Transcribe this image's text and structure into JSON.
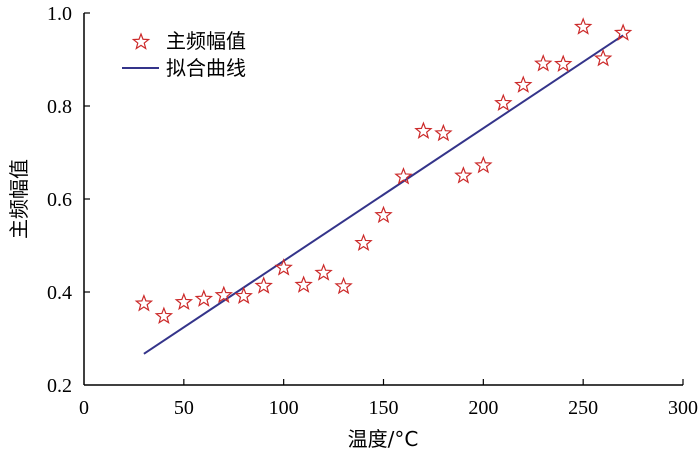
{
  "chart_data": {
    "type": "scatter",
    "xlabel": "温度/°C",
    "ylabel": "主频幅值",
    "xlim": [
      0,
      300
    ],
    "ylim": [
      0.2,
      1.0
    ],
    "xticks": [
      0,
      50,
      100,
      150,
      200,
      250,
      300
    ],
    "yticks": [
      0.2,
      0.4,
      0.6,
      0.8,
      1.0
    ],
    "xtick_labels": [
      "0",
      "50",
      "100",
      "150",
      "200",
      "250",
      "300"
    ],
    "ytick_labels": [
      "0.2",
      "0.4",
      "0.6",
      "0.8",
      "1.0"
    ],
    "legend_position": "top-left",
    "series": [
      {
        "name": "主频幅值",
        "type": "scatter",
        "marker": "star",
        "color": "#cc2a2a",
        "x": [
          30,
          40,
          50,
          60,
          70,
          80,
          90,
          100,
          110,
          120,
          130,
          140,
          150,
          160,
          170,
          180,
          190,
          200,
          210,
          220,
          230,
          240,
          250,
          260,
          270
        ],
        "y": [
          0.375,
          0.348,
          0.378,
          0.385,
          0.393,
          0.391,
          0.413,
          0.452,
          0.415,
          0.441,
          0.412,
          0.505,
          0.565,
          0.648,
          0.746,
          0.741,
          0.65,
          0.672,
          0.806,
          0.845,
          0.891,
          0.89,
          0.97,
          0.902,
          0.957
        ]
      },
      {
        "name": "拟合曲线",
        "type": "line",
        "color": "#34348a",
        "x": [
          30,
          270
        ],
        "y": [
          0.267,
          0.952
        ]
      }
    ]
  }
}
